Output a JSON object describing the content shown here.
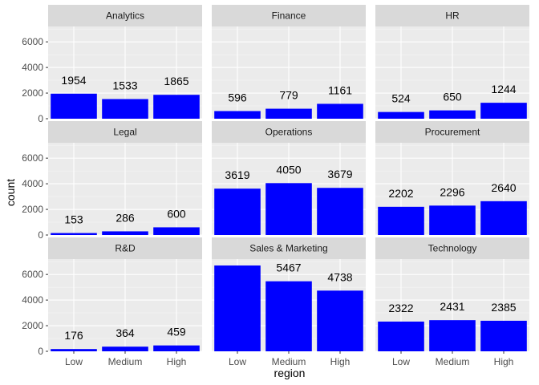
{
  "chart_data": {
    "type": "bar",
    "xlabel": "region",
    "ylabel": "count",
    "categories": [
      "Low",
      "Medium",
      "High"
    ],
    "ylim": [
      0,
      7200
    ],
    "yticks": [
      0,
      2000,
      4000,
      6000
    ],
    "grid": true,
    "bar_color": "#0000ff",
    "panel_background": "#ebebeb",
    "strip_background": "#d9d9d9",
    "facets": [
      {
        "name": "Analytics",
        "values": [
          1954,
          1533,
          1865
        ],
        "labels": [
          "1954",
          "1533",
          "1865"
        ]
      },
      {
        "name": "Finance",
        "values": [
          596,
          779,
          1161
        ],
        "labels": [
          "596",
          "779",
          "1161"
        ]
      },
      {
        "name": "HR",
        "values": [
          524,
          650,
          1244
        ],
        "labels": [
          "524",
          "650",
          "1244"
        ]
      },
      {
        "name": "Legal",
        "values": [
          153,
          286,
          600
        ],
        "labels": [
          "153",
          "286",
          "600"
        ]
      },
      {
        "name": "Operations",
        "values": [
          3619,
          4050,
          3679
        ],
        "labels": [
          "3619",
          "4050",
          "3679"
        ]
      },
      {
        "name": "Procurement",
        "values": [
          2202,
          2296,
          2640
        ],
        "labels": [
          "2202",
          "2296",
          "2640"
        ]
      },
      {
        "name": "R&D",
        "values": [
          176,
          364,
          459
        ],
        "labels": [
          "176",
          "364",
          "459"
        ]
      },
      {
        "name": "Sales & Marketing",
        "values": [
          6700,
          5467,
          4738
        ],
        "labels": [
          "",
          "5467",
          "4738"
        ]
      },
      {
        "name": "Technology",
        "values": [
          2322,
          2431,
          2385
        ],
        "labels": [
          "2322",
          "2431",
          "2385"
        ]
      }
    ]
  }
}
